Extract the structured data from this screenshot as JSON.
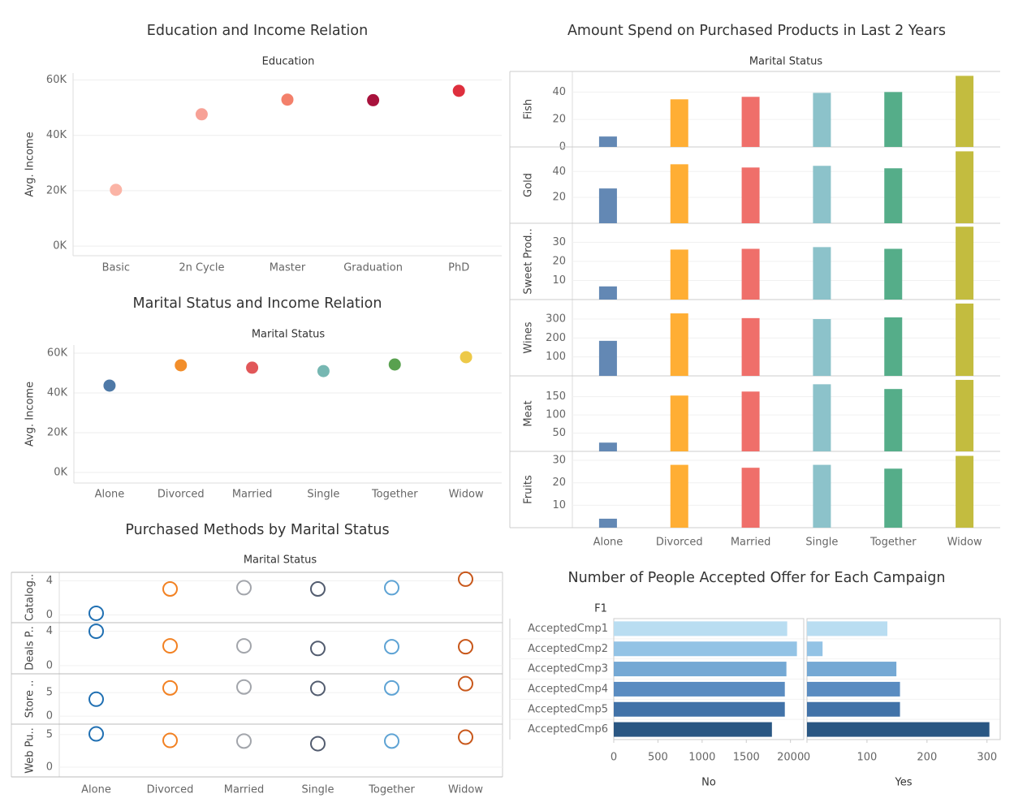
{
  "chart_data": [
    {
      "type": "dot",
      "title": "Education and Income Relation",
      "x_header": "Education",
      "y_label": "Avg. Income",
      "categories": [
        "Basic",
        "2n Cycle",
        "Master",
        "Graduation",
        "PhD"
      ],
      "values": [
        20300,
        47600,
        52900,
        52700,
        56100
      ],
      "colors": [
        "#fbb4a6",
        "#f7a196",
        "#f3806b",
        "#a8123c",
        "#de2f3d"
      ],
      "ylim": [
        -3500,
        62500
      ],
      "yticks": [
        {
          "value": 0,
          "label": "0K"
        },
        {
          "value": 20000,
          "label": "20K"
        },
        {
          "value": 40000,
          "label": "40K"
        },
        {
          "value": 60000,
          "label": "60K"
        }
      ]
    },
    {
      "type": "dot",
      "title": "Marital Status and Income Relation",
      "x_header": "Marital Status",
      "y_label": "Avg. Income",
      "categories": [
        "Alone",
        "Divorced",
        "Married",
        "Single",
        "Together",
        "Widow"
      ],
      "values": [
        43700,
        53900,
        52700,
        51000,
        54300,
        58000
      ],
      "colors": [
        "#4e79a7",
        "#f28e2b",
        "#e15759",
        "#76b7b2",
        "#59a14f",
        "#edc948"
      ],
      "ylim": [
        -5300,
        64100
      ],
      "yticks": [
        {
          "value": 0,
          "label": "0K"
        },
        {
          "value": 20000,
          "label": "20K"
        },
        {
          "value": 40000,
          "label": "40K"
        },
        {
          "value": 60000,
          "label": "60K"
        }
      ]
    },
    {
      "type": "bar-panels",
      "title": "Amount Spend on Purchased Products in Last 2 Years",
      "x_header": "Marital Status",
      "categories": [
        "Alone",
        "Divorced",
        "Married",
        "Single",
        "Together",
        "Widow"
      ],
      "colors": [
        "#6388b4",
        "#ffae34",
        "#ef6f6a",
        "#8cc2ca",
        "#55ad89",
        "#c3bc3f"
      ],
      "panels": [
        {
          "label": "Fish",
          "values": [
            7.6,
            34.7,
            36.5,
            39.4,
            40,
            51.8
          ],
          "ylim": [
            0,
            55
          ],
          "yticks": [
            0,
            20,
            40
          ]
        },
        {
          "label": "Gold",
          "values": [
            26.9,
            45.6,
            43.1,
            44.4,
            42.5,
            55.6
          ],
          "ylim": [
            0,
            59
          ],
          "yticks": [
            20,
            40
          ]
        },
        {
          "label": "Sweet Prod..",
          "values": [
            6.9,
            26.2,
            26.6,
            27.5,
            26.6,
            38.2
          ],
          "ylim": [
            0,
            40
          ],
          "yticks": [
            10,
            20,
            30
          ]
        },
        {
          "label": "Wines",
          "values": [
            185,
            330,
            305,
            300,
            309,
            382
          ],
          "ylim": [
            0,
            403
          ],
          "yticks": [
            100,
            200,
            300
          ]
        },
        {
          "label": "Meat",
          "values": [
            24,
            153,
            164,
            184,
            171,
            196
          ],
          "ylim": [
            0,
            207
          ],
          "yticks": [
            50,
            100,
            150
          ]
        },
        {
          "label": "Fruits",
          "values": [
            4,
            28,
            26.7,
            28,
            26.3,
            32
          ],
          "ylim": [
            0,
            34
          ],
          "yticks": [
            10,
            20,
            30
          ]
        }
      ]
    },
    {
      "type": "circle-panels",
      "title": "Purchased Methods by Marital Status",
      "x_header": "Marital Status",
      "categories": [
        "Alone",
        "Divorced",
        "Married",
        "Single",
        "Together",
        "Widow"
      ],
      "colors": [
        "#1f6fb2",
        "#f28122",
        "#a2a5ab",
        "#525c6f",
        "#5ea3d4",
        "#c8571a"
      ],
      "panels": [
        {
          "label": "Catalog..",
          "values": [
            0.2,
            3.05,
            3.2,
            3.05,
            3.2,
            4.2
          ],
          "ylim": [
            -0.9,
            5
          ],
          "yticks": [
            0,
            4
          ]
        },
        {
          "label": "Deals P..",
          "values": [
            4,
            2.3,
            2.3,
            2,
            2.2,
            2.2
          ],
          "ylim": [
            -0.95,
            5
          ],
          "yticks": [
            0,
            4
          ]
        },
        {
          "label": "Store ..",
          "values": [
            3.6,
            6,
            6.2,
            5.9,
            6,
            6.9
          ],
          "ylim": [
            -1.7,
            9
          ],
          "yticks": [
            0,
            5
          ]
        },
        {
          "label": "Web Pu..",
          "values": [
            5.1,
            4.1,
            4,
            3.6,
            4,
            4.6
          ],
          "ylim": [
            -1.5,
            6.6
          ],
          "yticks": [
            0,
            5
          ]
        }
      ]
    },
    {
      "type": "hbar-panels",
      "title": "Number of People Accepted Offer for Each Campaign",
      "row_header": "F1",
      "categories": [
        "AcceptedCmp1",
        "AcceptedCmp2",
        "AcceptedCmp3",
        "AcceptedCmp4",
        "AcceptedCmp5",
        "AcceptedCmp6"
      ],
      "colors": [
        "#b9ddf1",
        "#93c3e5",
        "#74a8d4",
        "#5a8cc1",
        "#4172a8",
        "#2a5783"
      ],
      "panels": [
        {
          "label": "No",
          "values": [
            1963,
            2073,
            1954,
            1936,
            1936,
            1790
          ],
          "xlim": [
            0,
            2150
          ],
          "xticks": [
            0,
            500,
            1000,
            1500,
            2000
          ]
        },
        {
          "label": "Yes",
          "values": [
            134,
            26,
            149,
            155,
            155,
            304
          ],
          "xlim": [
            0,
            322
          ],
          "xticks": [
            0,
            100,
            200,
            300
          ]
        }
      ]
    }
  ]
}
